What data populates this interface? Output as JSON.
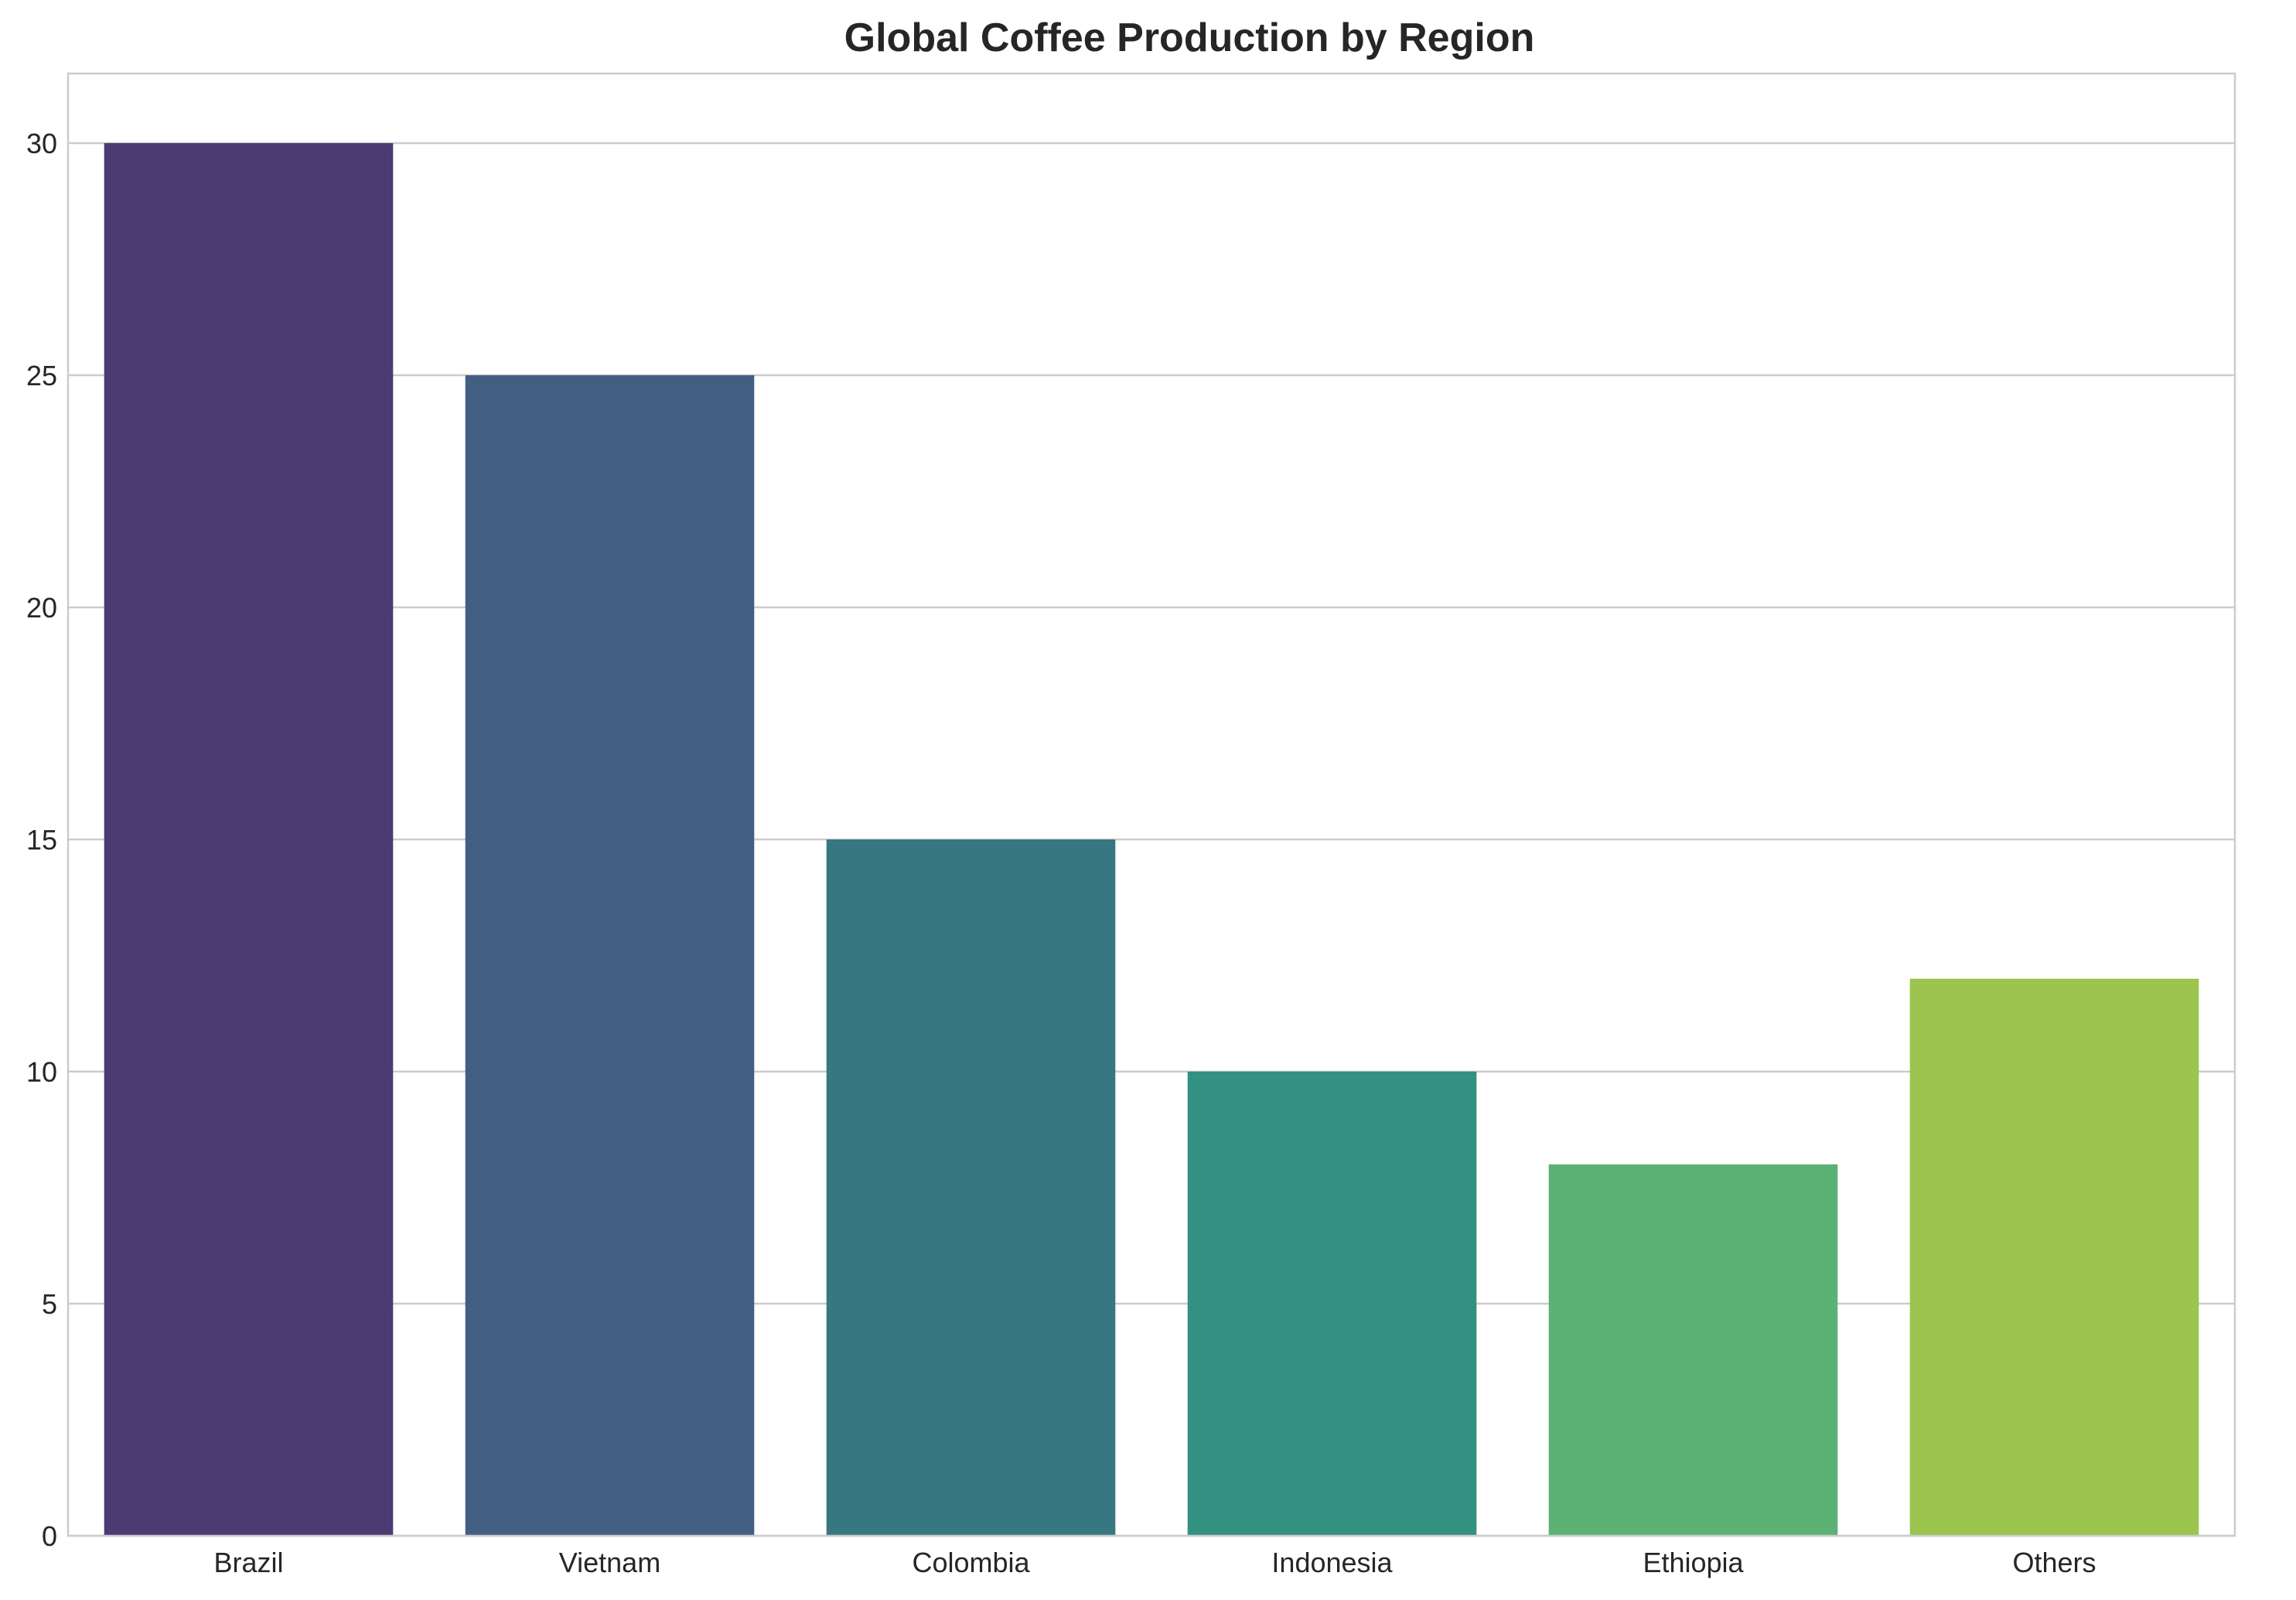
{
  "chart_data": {
    "type": "bar",
    "title": "Global Coffee Production by Region",
    "xlabel": "",
    "ylabel": "",
    "categories": [
      "Brazil",
      "Vietnam",
      "Colombia",
      "Indonesia",
      "Ethiopia",
      "Others"
    ],
    "values": [
      30,
      25,
      15,
      10,
      8,
      12
    ],
    "colors": [
      "#4a3b73",
      "#425f82",
      "#367781",
      "#329180",
      "#5bb274",
      "#9bc54e"
    ],
    "ylim": [
      0,
      31.5
    ],
    "yticks": [
      0,
      5,
      10,
      15,
      20,
      25,
      30
    ],
    "grid": true,
    "grid_axis": "y",
    "legend": "none"
  }
}
